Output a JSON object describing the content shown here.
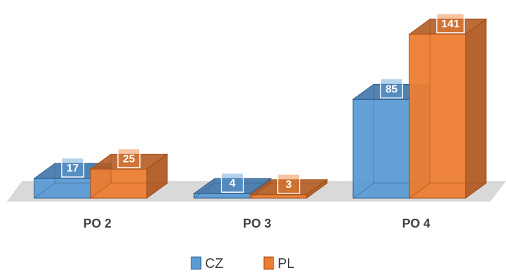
{
  "chart_data": {
    "type": "bar",
    "style": "3d-clustered-column",
    "categories": [
      "PO 2",
      "PO 3",
      "PO 4"
    ],
    "series": [
      {
        "name": "CZ",
        "values": [
          17,
          4,
          85
        ],
        "color": "#5B9BD5",
        "dark": "#3F74A8",
        "edge": "#2E5F8E"
      },
      {
        "name": "PL",
        "values": [
          25,
          3,
          141
        ],
        "color": "#ED7D31",
        "dark": "#B25C24",
        "edge": "#A04A14"
      }
    ],
    "ylim": [
      0,
      141
    ],
    "grid": false,
    "legend_position": "bottom",
    "data_labels": true
  }
}
